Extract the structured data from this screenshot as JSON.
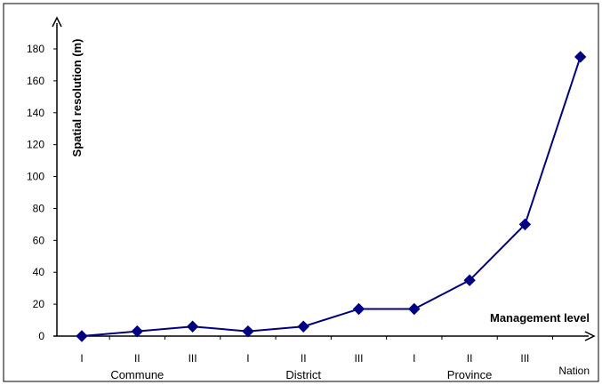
{
  "chart_data": {
    "type": "line",
    "categories": [
      "I",
      "II",
      "III",
      "I",
      "II",
      "III",
      "I",
      "II",
      "III",
      "Nation"
    ],
    "groups": [
      {
        "label": "Commune",
        "span": [
          0,
          2
        ]
      },
      {
        "label": "District",
        "span": [
          3,
          5
        ]
      },
      {
        "label": "Province",
        "span": [
          6,
          8
        ]
      }
    ],
    "series": [
      {
        "values": [
          0,
          3,
          6,
          3,
          6,
          17,
          17,
          35,
          70,
          175
        ]
      }
    ],
    "xlabel": "Management level",
    "ylabel": "Spatial resolution (m)",
    "ylim": [
      0,
      190
    ],
    "yticks": [
      0,
      20,
      40,
      60,
      80,
      100,
      120,
      140,
      160,
      180
    ],
    "grid": false,
    "colors": {
      "series": "#000080",
      "axis": "#000000",
      "frame": "#000000"
    }
  }
}
